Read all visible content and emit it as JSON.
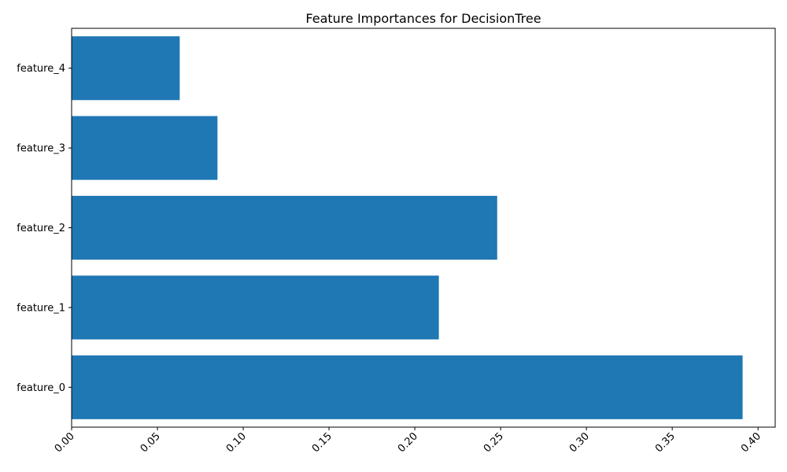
{
  "chart_data": {
    "type": "bar",
    "orientation": "horizontal",
    "title": "Feature Importances for DecisionTree",
    "xlabel": "",
    "ylabel": "",
    "categories": [
      "feature_0",
      "feature_1",
      "feature_2",
      "feature_3",
      "feature_4"
    ],
    "values": [
      0.391,
      0.214,
      0.248,
      0.085,
      0.063
    ],
    "xlim": [
      0.0,
      0.41
    ],
    "x_ticks": [
      "0.00",
      "0.05",
      "0.10",
      "0.15",
      "0.20",
      "0.25",
      "0.30",
      "0.35",
      "0.40"
    ],
    "x_tick_rotation_deg": 45,
    "grid": false,
    "bar_color": "#1f77b4"
  }
}
